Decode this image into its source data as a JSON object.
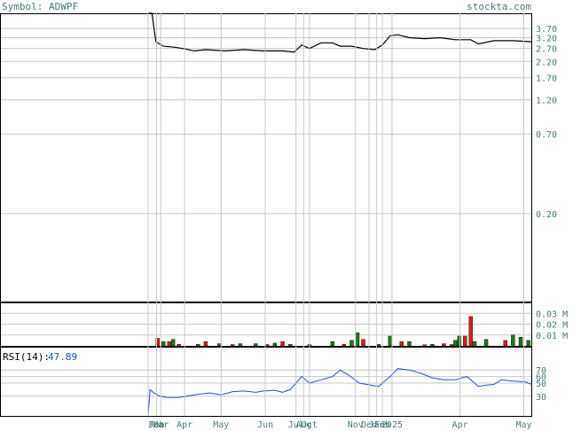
{
  "header": {
    "symbol_text": "Symbol: ADWPF",
    "site_text": "stockta.com"
  },
  "colors": {
    "grid": "#c8c8c8",
    "frame": "#000000",
    "label": "#4a7a7a",
    "price_line": "#000000",
    "volume_up": "#1a7a1a",
    "volume_down": "#dd1a1a",
    "rsi_line": "#1f4fcf",
    "rsi_label": "#000000",
    "rsi_value": "#1f4fcf"
  },
  "chart_data": [
    {
      "type": "line",
      "panel": "price",
      "y_scale": "log",
      "y_ticks": [
        "3.70",
        "3.20",
        "2.70",
        "2.20",
        "1.70",
        "1.20",
        "0.70",
        "0.20"
      ],
      "y_tick_values": [
        3.7,
        3.2,
        2.7,
        2.2,
        1.7,
        1.2,
        0.7,
        0.2
      ],
      "x_tick_labels": [
        "Jan",
        "Feb",
        "Mar",
        "Apr",
        "May",
        "Jun",
        "Jul",
        "Aug",
        "Oct",
        "Nov",
        "Dec",
        "Jan",
        "Feb",
        "2025",
        "Apr",
        "May"
      ],
      "x_tick_positions": [
        0.0,
        0.022,
        0.033,
        0.095,
        0.19,
        0.305,
        0.385,
        0.405,
        0.42,
        0.54,
        0.575,
        0.595,
        0.61,
        0.635,
        0.812,
        0.978
      ],
      "series": [
        {
          "x": [
            0.0,
            0.01,
            0.02,
            0.04,
            0.07,
            0.09,
            0.12,
            0.15,
            0.2,
            0.25,
            0.3,
            0.35,
            0.38,
            0.4,
            0.42,
            0.45,
            0.48,
            0.5,
            0.53,
            0.56,
            0.59,
            0.61,
            0.63,
            0.65,
            0.68,
            0.72,
            0.76,
            0.8,
            0.84,
            0.86,
            0.9,
            0.95,
            1.0
          ],
          "values": [
            40,
            5.5,
            3.0,
            2.8,
            2.75,
            2.7,
            2.6,
            2.65,
            2.6,
            2.65,
            2.6,
            2.6,
            2.55,
            2.85,
            2.7,
            2.95,
            2.95,
            2.8,
            2.8,
            2.7,
            2.65,
            2.85,
            3.3,
            3.35,
            3.2,
            3.15,
            3.2,
            3.1,
            3.1,
            2.9,
            3.05,
            3.05,
            3.0
          ]
        }
      ]
    },
    {
      "type": "bar",
      "panel": "volume",
      "y_ticks": [
        "0.03 M",
        "0.02 M",
        "0.01 M"
      ],
      "y_tick_values": [
        0.03,
        0.02,
        0.01
      ],
      "series": [
        {
          "x": [
            0.025,
            0.04,
            0.055,
            0.065,
            0.08,
            0.13,
            0.15,
            0.185,
            0.22,
            0.24,
            0.28,
            0.31,
            0.33,
            0.35,
            0.37,
            0.42,
            0.48,
            0.51,
            0.53,
            0.545,
            0.56,
            0.6,
            0.63,
            0.66,
            0.68,
            0.72,
            0.74,
            0.77,
            0.79,
            0.8,
            0.81,
            0.825,
            0.84,
            0.85,
            0.88,
            0.93,
            0.95,
            0.97,
            0.99
          ],
          "values": [
            0.007,
            0.004,
            0.004,
            0.006,
            0.0015,
            0.0015,
            0.004,
            0.002,
            0.0012,
            0.002,
            0.002,
            0.0012,
            0.0025,
            0.004,
            0.0015,
            0.0012,
            0.004,
            0.0015,
            0.005,
            0.012,
            0.006,
            0.0015,
            0.009,
            0.004,
            0.004,
            0.001,
            0.0015,
            0.002,
            0.0012,
            0.005,
            0.009,
            0.009,
            0.027,
            0.004,
            0.006,
            0.005,
            0.01,
            0.008,
            0.005
          ],
          "up": [
            false,
            true,
            false,
            true,
            false,
            true,
            false,
            true,
            false,
            true,
            true,
            false,
            true,
            false,
            true,
            false,
            true,
            false,
            true,
            true,
            false,
            true,
            true,
            false,
            true,
            false,
            true,
            false,
            true,
            true,
            true,
            false,
            false,
            true,
            true,
            false,
            true,
            true,
            true
          ]
        }
      ]
    },
    {
      "type": "line",
      "panel": "rsi",
      "label": "RSI(14):",
      "value_text": "47.89",
      "y_ticks": [
        "70",
        "60",
        "50",
        "30"
      ],
      "y_tick_values": [
        70,
        60,
        50,
        30
      ],
      "y_range": [
        0,
        100
      ],
      "series": [
        {
          "x": [
            0.0,
            0.005,
            0.015,
            0.03,
            0.05,
            0.08,
            0.1,
            0.13,
            0.16,
            0.19,
            0.22,
            0.25,
            0.28,
            0.3,
            0.33,
            0.35,
            0.37,
            0.4,
            0.42,
            0.45,
            0.48,
            0.5,
            0.52,
            0.55,
            0.58,
            0.6,
            0.63,
            0.65,
            0.68,
            0.71,
            0.74,
            0.77,
            0.8,
            0.83,
            0.86,
            0.88,
            0.9,
            0.92,
            0.95,
            0.98,
            1.0
          ],
          "values": [
            0,
            40,
            35,
            30,
            28,
            28,
            30,
            33,
            35,
            32,
            37,
            38,
            36,
            38,
            39,
            36,
            40,
            60,
            50,
            55,
            60,
            70,
            63,
            50,
            47,
            45,
            60,
            72,
            70,
            65,
            58,
            55,
            55,
            60,
            45,
            47,
            48,
            55,
            53,
            52,
            47.89
          ]
        }
      ]
    }
  ]
}
